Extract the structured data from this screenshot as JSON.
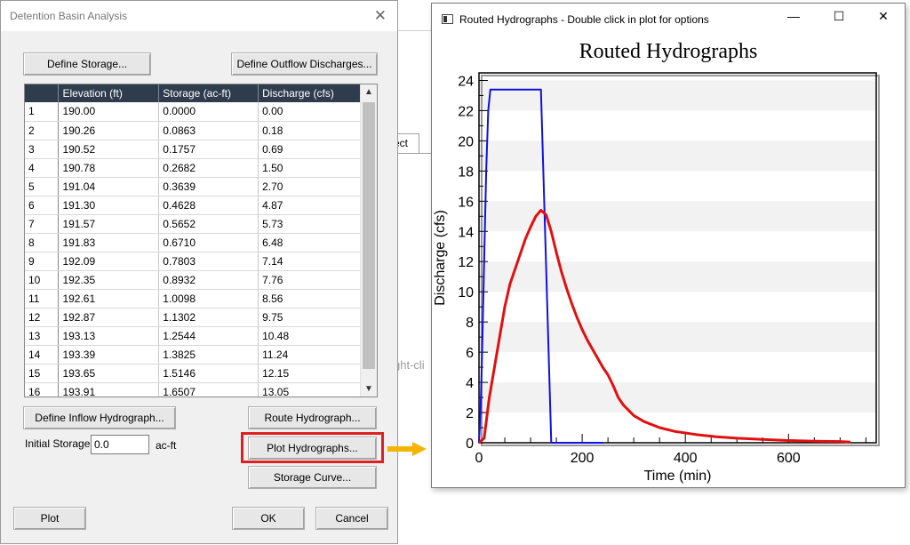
{
  "background": {
    "tab_fragment": "ect",
    "hint_fragment": "ght-cli"
  },
  "dialog": {
    "title": "Detention Basin Analysis",
    "define_storage": "Define Storage...",
    "define_outflow": "Define Outflow Discharges...",
    "columns": [
      "",
      "Elevation (ft)",
      "Storage (ac-ft)",
      "Discharge (cfs)"
    ],
    "rows": [
      [
        "1",
        "190.00",
        "0.0000",
        "0.00"
      ],
      [
        "2",
        "190.26",
        "0.0863",
        "0.18"
      ],
      [
        "3",
        "190.52",
        "0.1757",
        "0.69"
      ],
      [
        "4",
        "190.78",
        "0.2682",
        "1.50"
      ],
      [
        "5",
        "191.04",
        "0.3639",
        "2.70"
      ],
      [
        "6",
        "191.30",
        "0.4628",
        "4.87"
      ],
      [
        "7",
        "191.57",
        "0.5652",
        "5.73"
      ],
      [
        "8",
        "191.83",
        "0.6710",
        "6.48"
      ],
      [
        "9",
        "192.09",
        "0.7803",
        "7.14"
      ],
      [
        "10",
        "192.35",
        "0.8932",
        "7.76"
      ],
      [
        "11",
        "192.61",
        "1.0098",
        "8.56"
      ],
      [
        "12",
        "192.87",
        "1.1302",
        "9.75"
      ],
      [
        "13",
        "193.13",
        "1.2544",
        "10.48"
      ],
      [
        "14",
        "193.39",
        "1.3825",
        "11.24"
      ],
      [
        "15",
        "193.65",
        "1.5146",
        "12.15"
      ],
      [
        "16",
        "193.91",
        "1.6507",
        "13.05"
      ]
    ],
    "define_inflow": "Define Inflow Hydrograph...",
    "route_hydrograph": "Route Hydrograph...",
    "initial_storage_label": "Initial Storage:",
    "initial_storage_value": "0.0",
    "initial_storage_unit": "ac-ft",
    "plot_hydrographs": "Plot Hydrographs...",
    "storage_curve": "Storage Curve...",
    "plot": "Plot",
    "ok": "OK",
    "cancel": "Cancel",
    "highlight_color": "#e02020",
    "arrow_color": "#f5b400"
  },
  "plot_window": {
    "title": "Routed Hydrographs - Double click in plot for options",
    "minimize": "—",
    "maximize": "☐",
    "close": "✕"
  },
  "chart_data": {
    "type": "line",
    "title": "Routed Hydrographs",
    "xlabel": "Time (min)",
    "ylabel": "Discharge (cfs)",
    "xlim": [
      0,
      770
    ],
    "ylim": [
      0,
      24.5
    ],
    "xticks": [
      0,
      200,
      400,
      600
    ],
    "yticks": [
      0,
      2,
      4,
      6,
      8,
      10,
      12,
      14,
      16,
      18,
      20,
      22,
      24
    ],
    "grid": "horizontal bands",
    "series": [
      {
        "color": "#1010e0",
        "x": [
          0,
          3,
          6,
          10,
          14,
          18,
          22,
          120,
          140,
          142,
          240
        ],
        "y": [
          0,
          2,
          6,
          12,
          18,
          22,
          23.4,
          23.4,
          0.05,
          0,
          0
        ]
      },
      {
        "color": "#e01010",
        "x": [
          0,
          10,
          20,
          30,
          40,
          50,
          60,
          70,
          80,
          90,
          100,
          110,
          120,
          130,
          140,
          150,
          160,
          170,
          180,
          190,
          200,
          210,
          220,
          230,
          240,
          250,
          260,
          270,
          280,
          300,
          320,
          350,
          380,
          420,
          460,
          500,
          550,
          600,
          650,
          700,
          720
        ],
        "y": [
          0,
          0.3,
          3.0,
          5.0,
          7.0,
          9.0,
          10.5,
          11.5,
          12.5,
          13.5,
          14.3,
          15.0,
          15.4,
          15.1,
          14.0,
          12.6,
          11.3,
          10.2,
          9.2,
          8.3,
          7.5,
          6.8,
          6.2,
          5.6,
          5.0,
          4.5,
          3.8,
          3.0,
          2.5,
          1.8,
          1.4,
          1.0,
          0.75,
          0.55,
          0.4,
          0.3,
          0.22,
          0.15,
          0.1,
          0.08,
          0.05
        ]
      }
    ]
  }
}
